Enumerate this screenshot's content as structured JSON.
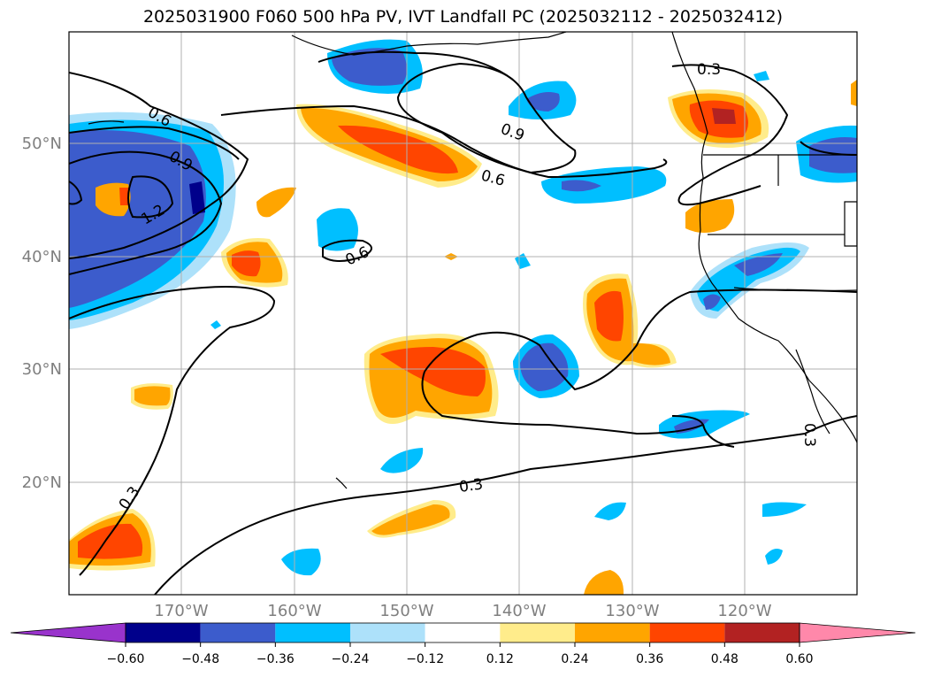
{
  "title": "2025031900 F060 500 hPa PV, IVT Landfall PC (2025032112 - 2025032412)",
  "lat_labels": [
    "50°N",
    "40°N",
    "30°N",
    "20°N"
  ],
  "lon_labels": [
    "170°W",
    "160°W",
    "150°W",
    "140°W",
    "130°W",
    "120°W"
  ],
  "contour_labels": [
    "0.6",
    "0.9",
    "1.2",
    "0.9",
    "0.6",
    "0.6",
    "0.3",
    "0.3",
    "0.3",
    "0.3"
  ],
  "colorbar": {
    "ticks": [
      "−0.60",
      "−0.48",
      "−0.36",
      "−0.24",
      "−0.12",
      "0.12",
      "0.24",
      "0.36",
      "0.48",
      "0.60"
    ],
    "colors": [
      "#9933cc",
      "#00008b",
      "#3c5ccc",
      "#00bfff",
      "#ade1fa",
      "#ffffff",
      "#ffec8b",
      "#ffa500",
      "#ff4500",
      "#b22222",
      "#ff88aa"
    ]
  },
  "colors": {
    "orange": "#ffa500",
    "orange_red": "#ff4500",
    "firebrick": "#b22222",
    "light_yellow": "#ffec8b",
    "deep_sky_blue": "#00bfff",
    "royal_blue": "#3c5ccc",
    "navy": "#00008b",
    "light_blue": "#ade1fa"
  }
}
